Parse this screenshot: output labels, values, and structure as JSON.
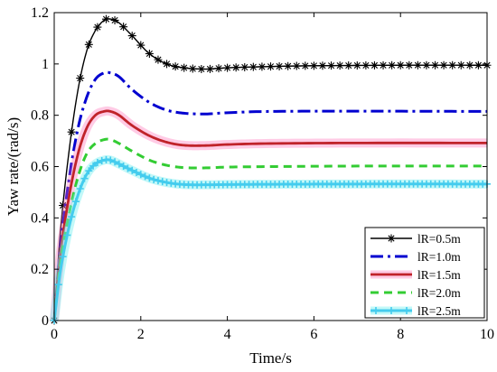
{
  "chart_data": {
    "type": "line",
    "title": "",
    "xlabel": "Time/s",
    "ylabel": "Yaw rate/(rad/s)",
    "xlim": [
      0,
      10
    ],
    "ylim": [
      0,
      1.2
    ],
    "xticks": [
      0,
      2,
      4,
      6,
      8,
      10
    ],
    "yticks": [
      0,
      0.2,
      0.4,
      0.6,
      0.8,
      1,
      1.2
    ],
    "ytick_labels": [
      "0",
      "0.2",
      "0.4",
      "0.6",
      "0.8",
      "1",
      "1.2"
    ],
    "grid": false,
    "legend_position": "bottom-right",
    "series": [
      {
        "name": "lR=0.5m",
        "color": "#000000",
        "style": "solid-star",
        "points": [
          [
            0,
            0
          ],
          [
            0.15,
            0.36
          ],
          [
            0.35,
            0.67
          ],
          [
            0.55,
            0.9
          ],
          [
            0.75,
            1.05
          ],
          [
            0.95,
            1.13
          ],
          [
            1.15,
            1.17
          ],
          [
            1.3,
            1.175
          ],
          [
            1.5,
            1.16
          ],
          [
            1.8,
            1.11
          ],
          [
            2.2,
            1.04
          ],
          [
            2.6,
            1.0
          ],
          [
            3.0,
            0.985
          ],
          [
            3.5,
            0.98
          ],
          [
            4.0,
            0.985
          ],
          [
            5.0,
            0.99
          ],
          [
            6.0,
            0.993
          ],
          [
            8.0,
            0.995
          ],
          [
            10.0,
            0.995
          ]
        ]
      },
      {
        "name": "lR=1.0m",
        "color": "#0000d0",
        "style": "dashdot",
        "points": [
          [
            0,
            0
          ],
          [
            0.15,
            0.3
          ],
          [
            0.35,
            0.56
          ],
          [
            0.55,
            0.75
          ],
          [
            0.75,
            0.87
          ],
          [
            0.95,
            0.94
          ],
          [
            1.15,
            0.965
          ],
          [
            1.3,
            0.965
          ],
          [
            1.5,
            0.95
          ],
          [
            1.8,
            0.9
          ],
          [
            2.2,
            0.85
          ],
          [
            2.6,
            0.82
          ],
          [
            3.0,
            0.808
          ],
          [
            3.5,
            0.805
          ],
          [
            4.0,
            0.81
          ],
          [
            5.0,
            0.815
          ],
          [
            7.0,
            0.816
          ],
          [
            10.0,
            0.815
          ]
        ]
      },
      {
        "name": "lR=1.5m",
        "color": "#c0232a",
        "style": "solid-thick",
        "points": [
          [
            0,
            0
          ],
          [
            0.15,
            0.27
          ],
          [
            0.35,
            0.49
          ],
          [
            0.55,
            0.65
          ],
          [
            0.75,
            0.75
          ],
          [
            0.95,
            0.8
          ],
          [
            1.15,
            0.815
          ],
          [
            1.3,
            0.815
          ],
          [
            1.5,
            0.8
          ],
          [
            1.8,
            0.76
          ],
          [
            2.2,
            0.72
          ],
          [
            2.6,
            0.695
          ],
          [
            3.0,
            0.683
          ],
          [
            3.5,
            0.682
          ],
          [
            4.0,
            0.686
          ],
          [
            5.0,
            0.69
          ],
          [
            7.0,
            0.692
          ],
          [
            10.0,
            0.692
          ]
        ]
      },
      {
        "name": "lR=2.0m",
        "color": "#33cc33",
        "style": "dashed",
        "points": [
          [
            0,
            0
          ],
          [
            0.15,
            0.23
          ],
          [
            0.35,
            0.42
          ],
          [
            0.55,
            0.56
          ],
          [
            0.75,
            0.65
          ],
          [
            0.95,
            0.69
          ],
          [
            1.15,
            0.705
          ],
          [
            1.3,
            0.705
          ],
          [
            1.5,
            0.69
          ],
          [
            1.8,
            0.66
          ],
          [
            2.2,
            0.625
          ],
          [
            2.6,
            0.605
          ],
          [
            3.0,
            0.596
          ],
          [
            3.5,
            0.595
          ],
          [
            4.0,
            0.598
          ],
          [
            5.0,
            0.6
          ],
          [
            7.0,
            0.602
          ],
          [
            10.0,
            0.602
          ]
        ]
      },
      {
        "name": "lR=2.5m",
        "color": "#44ccee",
        "style": "thick-plus",
        "points": [
          [
            0,
            0
          ],
          [
            0.15,
            0.2
          ],
          [
            0.35,
            0.37
          ],
          [
            0.55,
            0.49
          ],
          [
            0.75,
            0.57
          ],
          [
            0.95,
            0.61
          ],
          [
            1.15,
            0.625
          ],
          [
            1.3,
            0.625
          ],
          [
            1.5,
            0.61
          ],
          [
            1.8,
            0.585
          ],
          [
            2.2,
            0.555
          ],
          [
            2.6,
            0.538
          ],
          [
            3.0,
            0.53
          ],
          [
            3.5,
            0.529
          ],
          [
            4.0,
            0.53
          ],
          [
            5.0,
            0.531
          ],
          [
            7.0,
            0.532
          ],
          [
            10.0,
            0.532
          ]
        ]
      }
    ]
  }
}
